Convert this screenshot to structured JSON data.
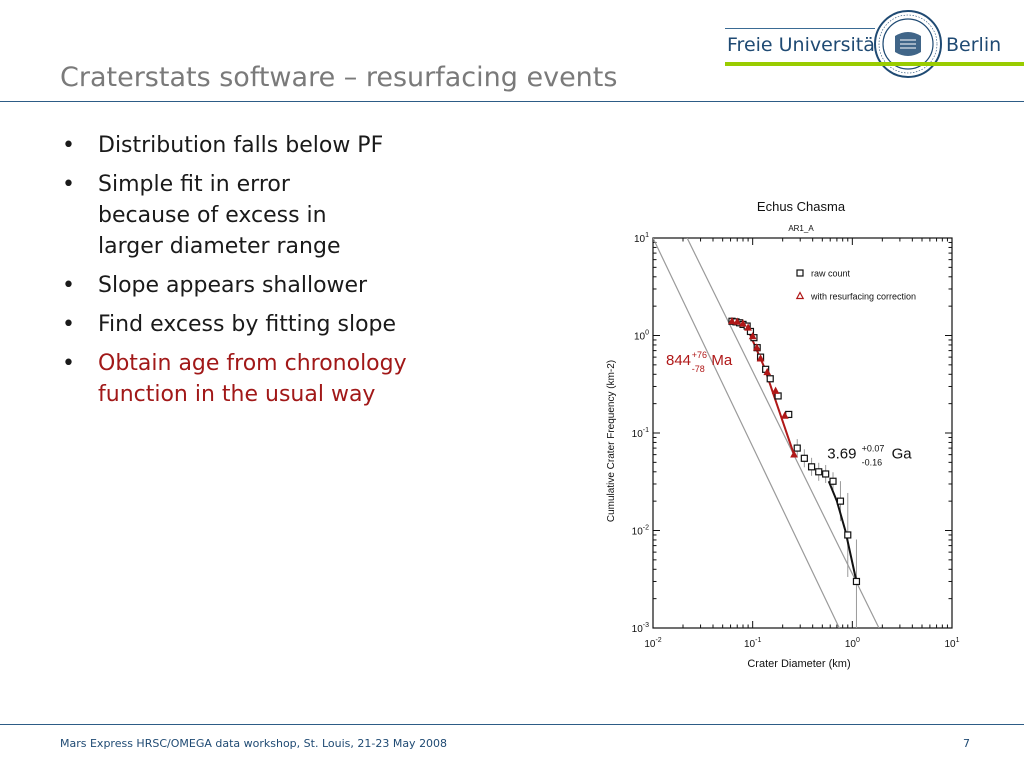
{
  "slide": {
    "title": "Craterstats software – resurfacing events",
    "logo": {
      "left_text": "Freie Universität",
      "right_text": "Berlin",
      "seal": "university-seal"
    },
    "bullets": [
      {
        "text": "Distribution falls below PF",
        "highlight": false
      },
      {
        "text": "Simple fit in error because of excess in larger diameter range",
        "highlight": false
      },
      {
        "text": "Slope appears shallower",
        "highlight": false
      },
      {
        "text": "Find excess by fitting slope",
        "highlight": false
      },
      {
        "text": "Obtain age from chronology function in the usual way",
        "highlight": true
      }
    ],
    "highlight_color": "#a11818",
    "footer": "Mars Express HRSC/OMEGA data workshop, St. Louis, 21-23 May 2008",
    "page_number": "7"
  },
  "chart_data": {
    "type": "scatter",
    "title": "Echus Chasma",
    "subtitle": "AR1_A",
    "xlabel": "Crater Diameter (km)",
    "ylabel": "Cumulative Crater Frequency (km-2)",
    "x_scale": "log",
    "y_scale": "log",
    "xlim": [
      0.01,
      10
    ],
    "ylim": [
      0.001,
      10
    ],
    "x_ticks": [
      {
        "base": "10",
        "exp": "-2"
      },
      {
        "base": "10",
        "exp": "-1"
      },
      {
        "base": "10",
        "exp": "0"
      },
      {
        "base": "10",
        "exp": "1"
      }
    ],
    "y_ticks": [
      {
        "base": "10",
        "exp": "-3"
      },
      {
        "base": "10",
        "exp": "-2"
      },
      {
        "base": "10",
        "exp": "-1"
      },
      {
        "base": "10",
        "exp": "0"
      },
      {
        "base": "10",
        "exp": "1"
      }
    ],
    "legend": [
      {
        "label": "raw count",
        "marker": "square",
        "color": "#111111"
      },
      {
        "label": "with resurfacing correction",
        "marker": "triangle",
        "color": "#b01818"
      }
    ],
    "series": [
      {
        "name": "raw count",
        "color": "#111111",
        "marker": "square",
        "x": [
          0.062,
          0.068,
          0.074,
          0.08,
          0.088,
          0.095,
          0.103,
          0.111,
          0.12,
          0.135,
          0.15,
          0.18,
          0.23,
          0.28,
          0.33,
          0.39,
          0.46,
          0.54,
          0.64,
          0.76,
          0.9,
          1.1
        ],
        "y": [
          1.4,
          1.38,
          1.35,
          1.3,
          1.25,
          1.1,
          0.95,
          0.75,
          0.6,
          0.45,
          0.36,
          0.24,
          0.155,
          0.07,
          0.055,
          0.045,
          0.04,
          0.038,
          0.032,
          0.02,
          0.009,
          0.003
        ]
      },
      {
        "name": "with resurfacing correction",
        "color": "#b01818",
        "marker": "triangle",
        "x": [
          0.062,
          0.07,
          0.08,
          0.09,
          0.1,
          0.11,
          0.12,
          0.14,
          0.17,
          0.21,
          0.26
        ],
        "y": [
          1.4,
          1.38,
          1.32,
          1.2,
          0.98,
          0.75,
          0.58,
          0.42,
          0.27,
          0.15,
          0.06
        ]
      }
    ],
    "fits": [
      {
        "color": "#b01818",
        "x": [
          0.06,
          0.085,
          0.13,
          0.26
        ],
        "y": [
          1.42,
          1.3,
          0.48,
          0.06
        ]
      },
      {
        "color": "#111111",
        "x": [
          0.58,
          0.7,
          0.85,
          1.1
        ],
        "y": [
          0.032,
          0.02,
          0.01,
          0.003
        ]
      }
    ],
    "isochrons": [
      {
        "color": "#9a9a9a",
        "x": [
          0.01,
          0.74
        ],
        "y": [
          10,
          0.001
        ]
      },
      {
        "color": "#9a9a9a",
        "x": [
          0.022,
          1.85
        ],
        "y": [
          10,
          0.001
        ]
      }
    ],
    "annotations": [
      {
        "value": "844",
        "sup": "+76",
        "sub": "-78",
        "unit": "Ma",
        "color": "#b01818",
        "at": [
          0.0135,
          0.5
        ]
      },
      {
        "value": "3.69",
        "sup": "+0.07",
        "sub": "-0.16",
        "unit": "Ga",
        "color": "#111111",
        "at": [
          0.56,
          0.055
        ]
      }
    ]
  }
}
